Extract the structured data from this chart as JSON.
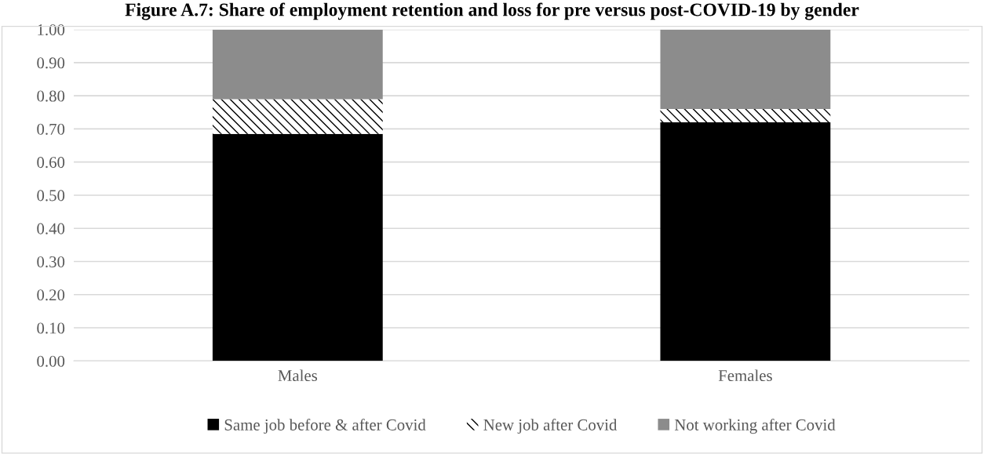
{
  "chart_data": {
    "type": "bar",
    "stacked": true,
    "title": "Figure A.7: Share of employment retention and loss for pre versus post-COVID-19 by gender",
    "categories": [
      "Males",
      "Females"
    ],
    "series": [
      {
        "name": "Same job before & after Covid",
        "color": "#000000",
        "values": [
          0.685,
          0.72
        ]
      },
      {
        "name": "New job after Covid",
        "color": "#ffffff",
        "values": [
          0.105,
          0.04
        ]
      },
      {
        "name": "Not working after Covid",
        "color": "#8c8c8c",
        "values": [
          0.21,
          0.24
        ]
      }
    ],
    "ylim": [
      0,
      1
    ],
    "yticks": [
      {
        "value": 0,
        "label": "0.00"
      },
      {
        "value": 0.1,
        "label": "0.10"
      },
      {
        "value": 0.2,
        "label": "0.20"
      },
      {
        "value": 0.3,
        "label": "0.30"
      },
      {
        "value": 0.4,
        "label": "0.40"
      },
      {
        "value": 0.5,
        "label": "0.50"
      },
      {
        "value": 0.6,
        "label": "0.60"
      },
      {
        "value": 0.7,
        "label": "0.70"
      },
      {
        "value": 0.8,
        "label": "0.80"
      },
      {
        "value": 0.9,
        "label": "0.90"
      },
      {
        "value": 1,
        "label": "1.00"
      }
    ],
    "grid": "y",
    "legend": "bottom"
  }
}
